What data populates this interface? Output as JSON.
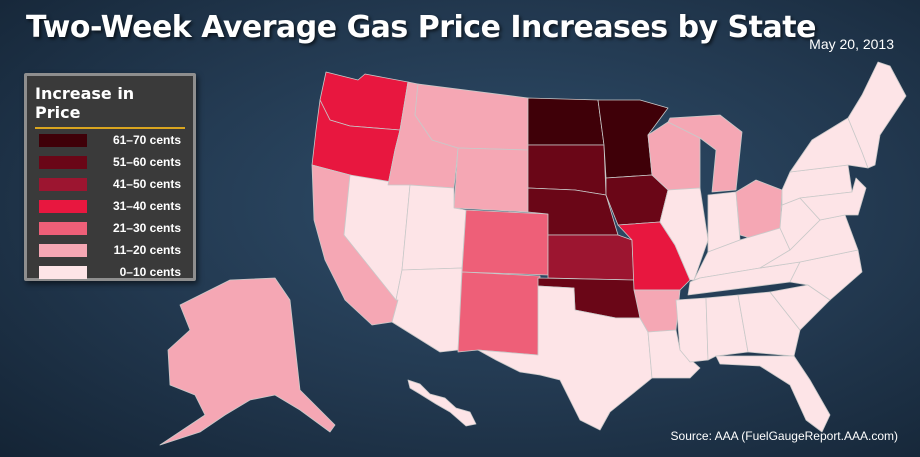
{
  "title": "Two-Week Average Gas Price Increases by State",
  "date": "May 20, 2013",
  "source": "Source: AAA (FuelGaugeReport.AAA.com)",
  "legend": {
    "title": "Increase in Price",
    "items": [
      {
        "label": "61–70 cents",
        "color": "#3f0008"
      },
      {
        "label": "51–60 cents",
        "color": "#6a0617"
      },
      {
        "label": "41–50 cents",
        "color": "#9c1530"
      },
      {
        "label": "31–40 cents",
        "color": "#e8173f"
      },
      {
        "label": "21–30 cents",
        "color": "#ee5f78"
      },
      {
        "label": "11–20 cents",
        "color": "#f5a7b4"
      },
      {
        "label": "0–10 cents",
        "color": "#fde4e7"
      }
    ]
  },
  "states": {
    "WA": 3,
    "OR": 3,
    "CA": 5,
    "NV": 6,
    "ID": 5,
    "MT": 5,
    "WY": 5,
    "UT": 6,
    "AZ": 6,
    "CO": 4,
    "NM": 4,
    "ND": 0,
    "SD": 1,
    "NE": 1,
    "KS": 2,
    "OK": 1,
    "TX": 6,
    "MN": 0,
    "IA": 1,
    "MO": 3,
    "AR": 5,
    "LA": 6,
    "WI": 5,
    "IL": 6,
    "MI": 5,
    "IN": 6,
    "OH": 5,
    "KY": 6,
    "TN": 6,
    "MS": 6,
    "AL": 6,
    "GA": 6,
    "FL": 6,
    "SC": 6,
    "NC": 6,
    "VA": 6,
    "WV": 6,
    "PA": 6,
    "NY": 6,
    "NE_region": 6,
    "AK": 5,
    "HI": 6
  }
}
